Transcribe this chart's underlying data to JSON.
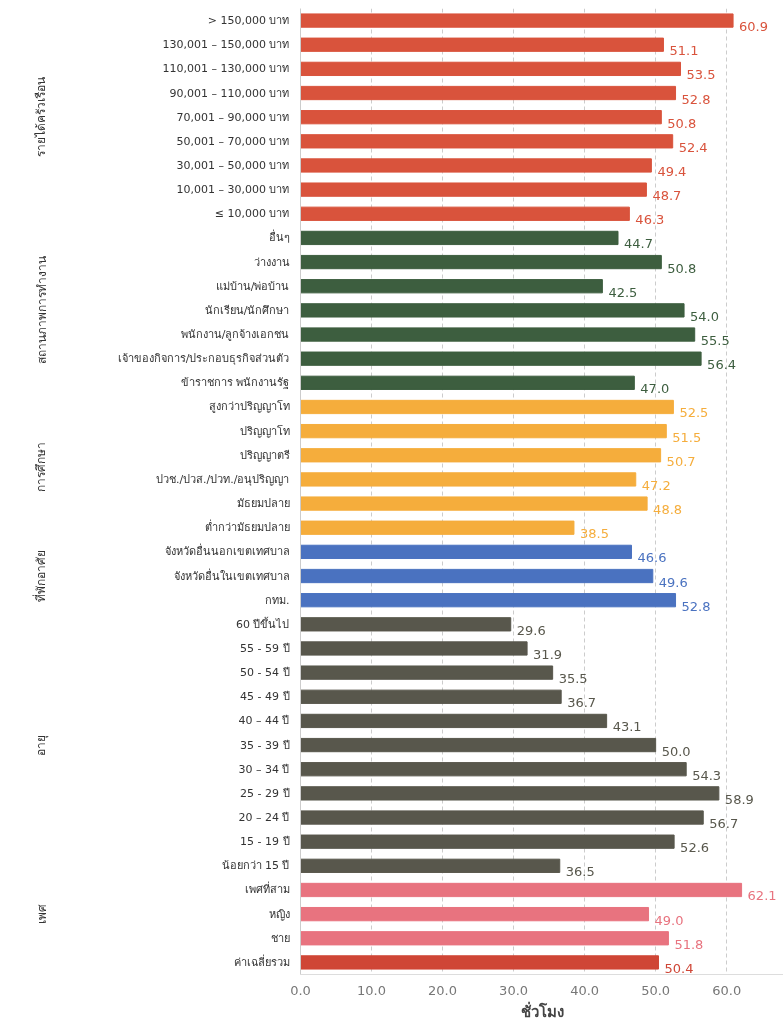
{
  "chart_data": {
    "type": "bar",
    "orientation": "horizontal",
    "xlabel": "ชั่วโมง",
    "categories": [
      "> 150,000 บาท",
      "130,001 – 150,000 บาท",
      "110,001 – 130,000 บาท",
      "90,001 – 110,000 บาท",
      "70,001 – 90,000 บาท",
      "50,001 – 70,000 บาท",
      "30,001 – 50,000 บาท",
      "10,001 – 30,000 บาท",
      "≤ 10,000 บาท",
      "อื่นๆ",
      "ว่างงาน",
      "แม่บ้าน/พ่อบ้าน",
      "นักเรียน/นักศึกษา",
      "พนักงาน/ลูกจ้างเอกชน",
      "เจ้าของกิจการ/ประกอบธุรกิจส่วนตัว",
      "ข้าราชการ พนักงานรัฐ",
      "สูงกว่าปริญญาโท",
      "ปริญญาโท",
      "ปริญญาตรี",
      "ปวช./ปวส./ปวท./อนุปริญญา",
      "มัธยมปลาย",
      "ต่ำกว่ามัธยมปลาย",
      "จังหวัดอื่นนอกเขตเทศบาล",
      "จังหวัดอื่นในเขตเทศบาล",
      "กทม.",
      "60 ปีขึ้นไป",
      "55 - 59 ปี",
      "50 - 54 ปี",
      "45 - 49 ปี",
      "40 – 44 ปี",
      "35 - 39 ปี",
      "30 – 34 ปี",
      "25 - 29 ปี",
      "20 – 24 ปี",
      "15 - 19 ปี",
      "น้อยกว่า 15 ปี",
      "เพศที่สาม",
      "หญิง",
      "ชาย",
      "ค่าเฉลี่ยรวม"
    ],
    "values": [
      60.9,
      51.1,
      53.5,
      52.8,
      50.8,
      52.4,
      49.4,
      48.7,
      46.3,
      44.7,
      50.8,
      42.5,
      54.0,
      55.5,
      56.4,
      47.0,
      52.5,
      51.5,
      50.7,
      47.2,
      48.8,
      38.5,
      46.6,
      49.6,
      52.8,
      29.6,
      31.9,
      35.5,
      36.7,
      43.1,
      50.0,
      54.3,
      58.9,
      56.7,
      52.6,
      36.5,
      62.1,
      49.0,
      51.8,
      50.4
    ],
    "colors": [
      "#d9533c",
      "#d9533c",
      "#d9533c",
      "#d9533c",
      "#d9533c",
      "#d9533c",
      "#d9533c",
      "#d9533c",
      "#d9533c",
      "#3d5e3f",
      "#3d5e3f",
      "#3d5e3f",
      "#3d5e3f",
      "#3d5e3f",
      "#3d5e3f",
      "#3d5e3f",
      "#f5ad3c",
      "#f5ad3c",
      "#f5ad3c",
      "#f5ad3c",
      "#f5ad3c",
      "#f5ad3c",
      "#4a72c0",
      "#4a72c0",
      "#4a72c0",
      "#58574c",
      "#58574c",
      "#58574c",
      "#58574c",
      "#58574c",
      "#58574c",
      "#58574c",
      "#58574c",
      "#58574c",
      "#58574c",
      "#58574c",
      "#e8737f",
      "#e8737f",
      "#e8737f",
      "#cf4636"
    ],
    "value_labels": [
      "60.9",
      "51.1",
      "53.5",
      "52.8",
      "50.8",
      "52.4",
      "49.4",
      "48.7",
      "46.3",
      "44.7",
      "50.8",
      "42.5",
      "54.0",
      "55.5",
      "56.4",
      "47.0",
      "52.5",
      "51.5",
      "50.7",
      "47.2",
      "48.8",
      "38.5",
      "46.6",
      "49.6",
      "52.8",
      "29.6",
      "31.9",
      "35.5",
      "36.7",
      "43.1",
      "50.0",
      "54.3",
      "58.9",
      "56.7",
      "52.6",
      "36.5",
      "62.1",
      "49.0",
      "51.8",
      "50.4"
    ],
    "annotations": [
      "รายได้ครัวเรือน",
      "สถานภาพการทำงาน",
      "การศึกษา",
      "ที่พักอาศัย",
      "อายุ",
      "เพศ"
    ],
    "xlim": [
      0,
      68
    ],
    "xticks": [
      {
        "value": 0,
        "label": "0.0"
      },
      {
        "value": 10,
        "label": "10.0"
      },
      {
        "value": 20,
        "label": "20.0"
      },
      {
        "value": 30,
        "label": "30.0"
      },
      {
        "value": 40,
        "label": "40.0"
      },
      {
        "value": 50,
        "label": "50.0"
      },
      {
        "value": 60,
        "label": "60.0"
      }
    ],
    "grid": "x"
  }
}
